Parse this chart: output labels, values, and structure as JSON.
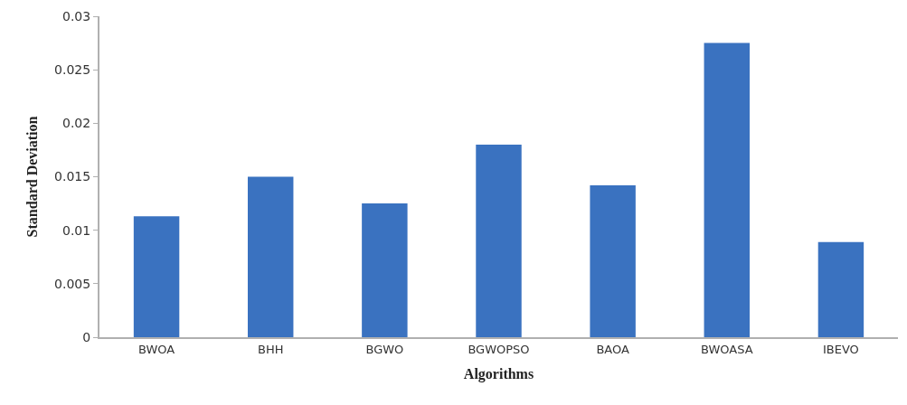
{
  "chart_data": {
    "type": "bar",
    "xlabel": "Algorithms",
    "ylabel": "Standard Deviation",
    "categories": [
      "BWOA",
      "BHH",
      "BGWO",
      "BGWOPSO",
      "BAOA",
      "BWOASA",
      "IBEVO"
    ],
    "values": [
      0.0113,
      0.015,
      0.0125,
      0.018,
      0.0142,
      0.0275,
      0.0089
    ],
    "color": "#3a72c0",
    "ylim": [
      0,
      0.03
    ],
    "yticks": [
      0,
      0.005,
      0.01,
      0.015,
      0.02,
      0.025,
      0.03
    ]
  }
}
